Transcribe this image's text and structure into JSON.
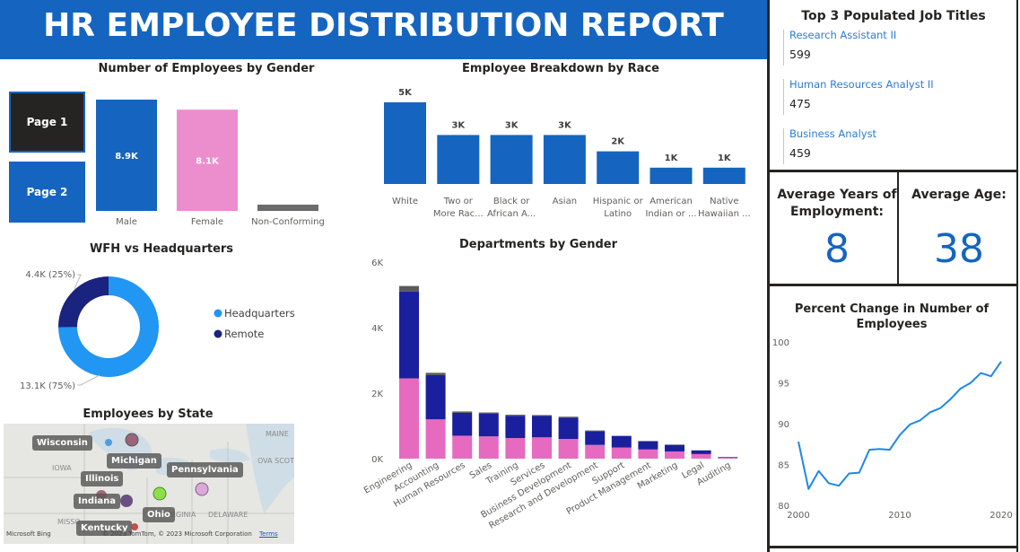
{
  "header": {
    "title": "HR EMPLOYEE DISTRIBUTION REPORT"
  },
  "nav": {
    "page1": "Page 1",
    "page2": "Page 2"
  },
  "gender_chart": {
    "title": "Number of Employees by Gender",
    "chart_data": {
      "type": "bar",
      "categories": [
        "Male",
        "Female",
        "Non-Conforming"
      ],
      "values": [
        8900,
        8100,
        500
      ],
      "data_labels": [
        "8.9K",
        "8.1K",
        ""
      ],
      "colors": [
        "#1565c0",
        "#ec8ece",
        "#6b6b6b"
      ]
    }
  },
  "race_chart": {
    "title": "Employee Breakdown by Race",
    "chart_data": {
      "type": "bar",
      "categories": [
        "White",
        "Two or More Rac...",
        "Black or African A...",
        "Asian",
        "Hispanic or Latino",
        "American Indian or ...",
        "Native Hawaiian ..."
      ],
      "category_lines": [
        [
          "White"
        ],
        [
          "Two or",
          "More Rac..."
        ],
        [
          "Black or",
          "African A..."
        ],
        [
          "Asian"
        ],
        [
          "Hispanic or",
          "Latino"
        ],
        [
          "American",
          "Indian or ..."
        ],
        [
          "Native",
          "Hawaiian ..."
        ]
      ],
      "values": [
        5000,
        3000,
        3000,
        3000,
        2000,
        1000,
        1000
      ],
      "data_labels": [
        "5K",
        "3K",
        "3K",
        "3K",
        "2K",
        "1K",
        "1K"
      ],
      "color": "#1565c0"
    }
  },
  "wfh_chart": {
    "title": "WFH vs Headquarters",
    "chart_data": {
      "type": "pie",
      "donut": true,
      "slices": [
        {
          "name": "Headquarters",
          "value": 13100,
          "label": "13.1K (75%)",
          "color": "#2196f3"
        },
        {
          "name": "Remote",
          "value": 4400,
          "label": "4.4K (25%)",
          "color": "#1a237e"
        }
      ],
      "legend": [
        "Headquarters",
        "Remote"
      ],
      "legend_position": "right"
    }
  },
  "state_map": {
    "title": "Employees by State",
    "states": [
      "Wisconsin",
      "Michigan",
      "Illinois",
      "Indiana",
      "Pennsylvania",
      "Ohio",
      "Kentucky"
    ],
    "base_labels": [
      "MAINE",
      "IOWA",
      "MISSO",
      "DELAWARE",
      "OVA SCOT",
      "IRGINIA"
    ],
    "attribution": "© 2023 TomTom, © 2023 Microsoft Corporation",
    "terms": "Terms",
    "bing": "Microsoft Bing"
  },
  "dept_chart": {
    "title": "Departments by Gender",
    "chart_data": {
      "type": "bar",
      "stacked": true,
      "categories": [
        "Engineering",
        "Accounting",
        "Human Resources",
        "Sales",
        "Training",
        "Services",
        "Business Development",
        "Research and Development",
        "Support",
        "Product Management",
        "Marketing",
        "Legal",
        "Auditing"
      ],
      "series": [
        {
          "name": "Female",
          "color": "#e66ac0",
          "values": [
            2450,
            1200,
            700,
            680,
            630,
            650,
            600,
            420,
            340,
            280,
            220,
            140,
            25
          ]
        },
        {
          "name": "Male",
          "color": "#1a1f9e",
          "values": [
            2650,
            1350,
            700,
            700,
            680,
            650,
            650,
            420,
            350,
            250,
            200,
            110,
            20
          ]
        },
        {
          "name": "Non-Conforming",
          "color": "#5a5a5a",
          "values": [
            170,
            70,
            40,
            30,
            30,
            30,
            30,
            20,
            10,
            10,
            10,
            5,
            2
          ]
        }
      ],
      "yticks": [
        "0K",
        "2K",
        "4K",
        "6K"
      ],
      "ylim": [
        0,
        6000
      ]
    }
  },
  "top_titles": {
    "title": "Top 3 Populated Job Titles",
    "items": [
      {
        "title": "Research Assistant II",
        "count": "599"
      },
      {
        "title": "Human Resources Analyst II",
        "count": "475"
      },
      {
        "title": "Business Analyst",
        "count": "459"
      }
    ]
  },
  "cards": {
    "years_label": "Average Years of Employment:",
    "years_value": "8",
    "age_label": "Average Age:",
    "age_value": "38"
  },
  "pct_chart": {
    "title": "Percent Change in Number of Employees",
    "chart_data": {
      "type": "line",
      "x": [
        2000,
        2001,
        2002,
        2003,
        2004,
        2005,
        2006,
        2007,
        2008,
        2009,
        2010,
        2011,
        2012,
        2013,
        2014,
        2015,
        2016,
        2017,
        2018,
        2019,
        2020
      ],
      "y": [
        87.8,
        82,
        84.2,
        82.7,
        82.4,
        83.9,
        84,
        86.8,
        86.9,
        86.8,
        88.6,
        89.9,
        90.4,
        91.4,
        91.9,
        93,
        94.3,
        95,
        96.2,
        95.8,
        97.6
      ],
      "yticks": [
        "80",
        "85",
        "90",
        "95",
        "100"
      ],
      "xticks": [
        "2000",
        "2010",
        "2020"
      ],
      "ylim": [
        80,
        100
      ],
      "color": "#1e88e5"
    }
  }
}
